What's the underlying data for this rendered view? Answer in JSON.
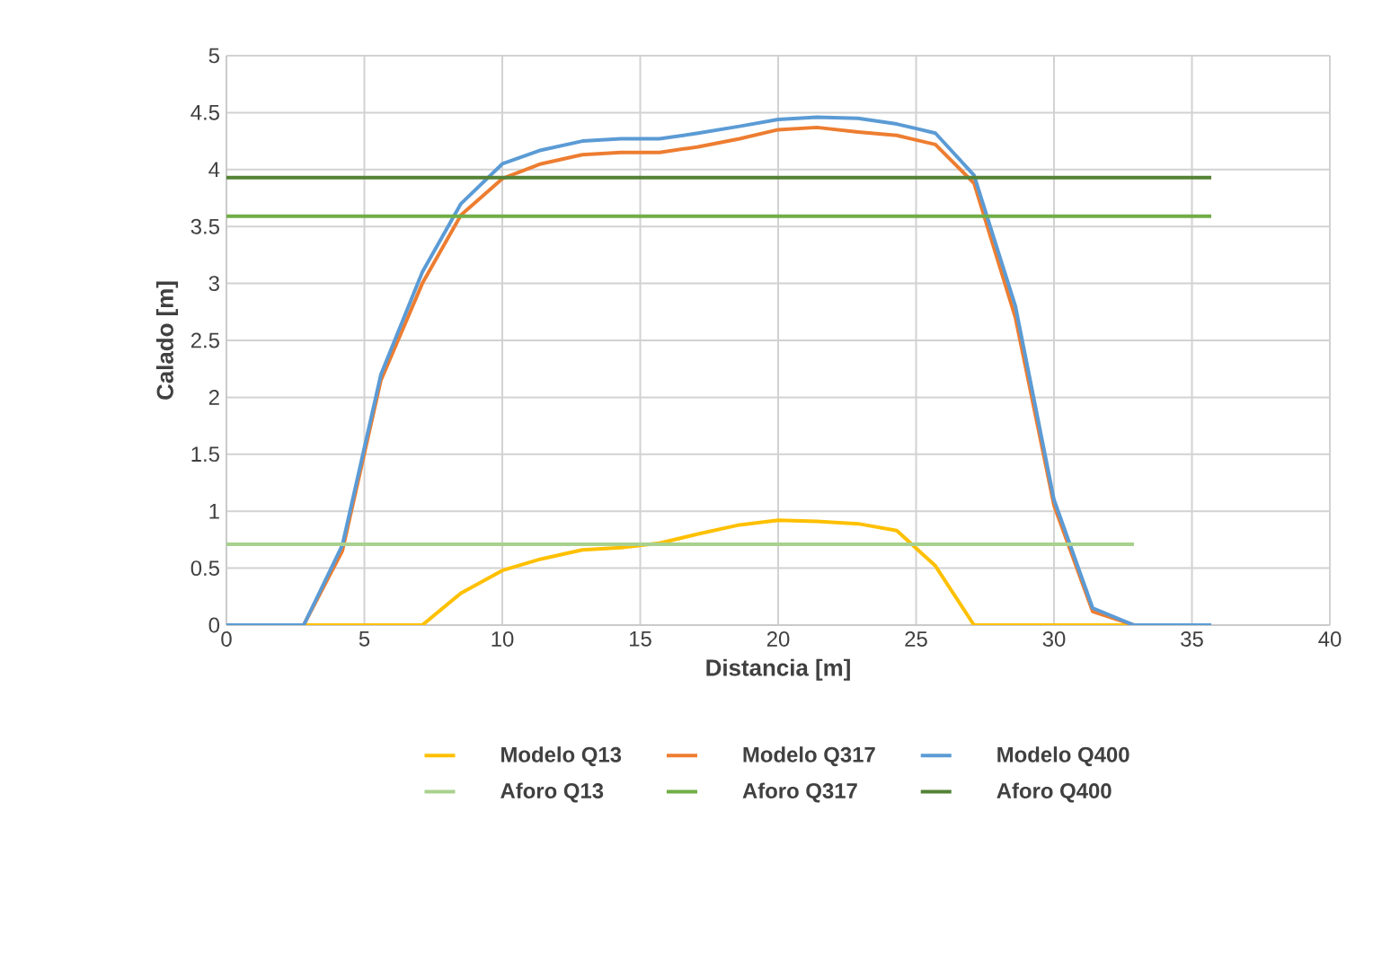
{
  "chart_data": {
    "type": "line",
    "xlabel": "Distancia [m]",
    "ylabel": "Calado [m]",
    "xlim": [
      0,
      40
    ],
    "ylim": [
      0,
      5
    ],
    "xticks": [
      0,
      5,
      10,
      15,
      20,
      25,
      30,
      35,
      40
    ],
    "yticks": [
      0,
      0.5,
      1,
      1.5,
      2,
      2.5,
      3,
      3.5,
      4,
      4.5,
      5
    ],
    "grid": true,
    "legend": "bottom",
    "marker": "none",
    "line_style": "solid",
    "series": [
      {
        "name": "Modelo Q13",
        "color": "#ffc000",
        "x": [
          0,
          2.8,
          4.2,
          5.6,
          7.1,
          8.5,
          10,
          11.4,
          12.9,
          14.3,
          15.7,
          17.1,
          18.6,
          20,
          21.4,
          22.9,
          24.3,
          25.7,
          27.1,
          28.6,
          30,
          31.4,
          32.9
        ],
        "values": [
          0,
          0,
          0,
          0,
          0,
          0.28,
          0.48,
          0.58,
          0.66,
          0.68,
          0.72,
          0.8,
          0.88,
          0.92,
          0.91,
          0.89,
          0.83,
          0.52,
          0,
          0,
          0,
          0,
          0
        ]
      },
      {
        "name": "Modelo Q317",
        "color": "#ed7d31",
        "x": [
          0,
          2.8,
          4.2,
          5.6,
          7.1,
          8.5,
          10,
          11.4,
          12.9,
          14.3,
          15.7,
          17.1,
          18.6,
          20,
          21.4,
          22.9,
          24.3,
          25.7,
          27.1,
          28.6,
          30,
          31.4,
          32.9,
          35.7
        ],
        "values": [
          0,
          0,
          0.65,
          2.15,
          3.0,
          3.6,
          3.92,
          4.05,
          4.13,
          4.15,
          4.15,
          4.2,
          4.27,
          4.35,
          4.37,
          4.33,
          4.3,
          4.22,
          3.88,
          2.7,
          1.05,
          0.12,
          0,
          0
        ]
      },
      {
        "name": "Modelo Q400",
        "color": "#5b9bd5",
        "x": [
          0,
          2.8,
          4.2,
          5.6,
          7.1,
          8.5,
          10,
          11.4,
          12.9,
          14.3,
          15.7,
          17.1,
          18.6,
          20,
          21.4,
          22.9,
          24.3,
          25.7,
          27.1,
          28.6,
          30,
          31.4,
          32.9,
          35.7
        ],
        "values": [
          0,
          0,
          0.7,
          2.2,
          3.1,
          3.7,
          4.05,
          4.17,
          4.25,
          4.27,
          4.27,
          4.32,
          4.38,
          4.44,
          4.46,
          4.45,
          4.4,
          4.32,
          3.95,
          2.8,
          1.1,
          0.15,
          0,
          0
        ]
      },
      {
        "name": "Aforo Q13",
        "color": "#a9d18e",
        "x": [
          0,
          32.9
        ],
        "values": [
          0.71,
          0.71
        ]
      },
      {
        "name": "Aforo Q317",
        "color": "#70ad47",
        "x": [
          0,
          35.7
        ],
        "values": [
          3.59,
          3.59
        ]
      },
      {
        "name": "Aforo Q400",
        "color": "#548235",
        "x": [
          0,
          35.7
        ],
        "values": [
          3.93,
          3.93
        ]
      }
    ]
  }
}
